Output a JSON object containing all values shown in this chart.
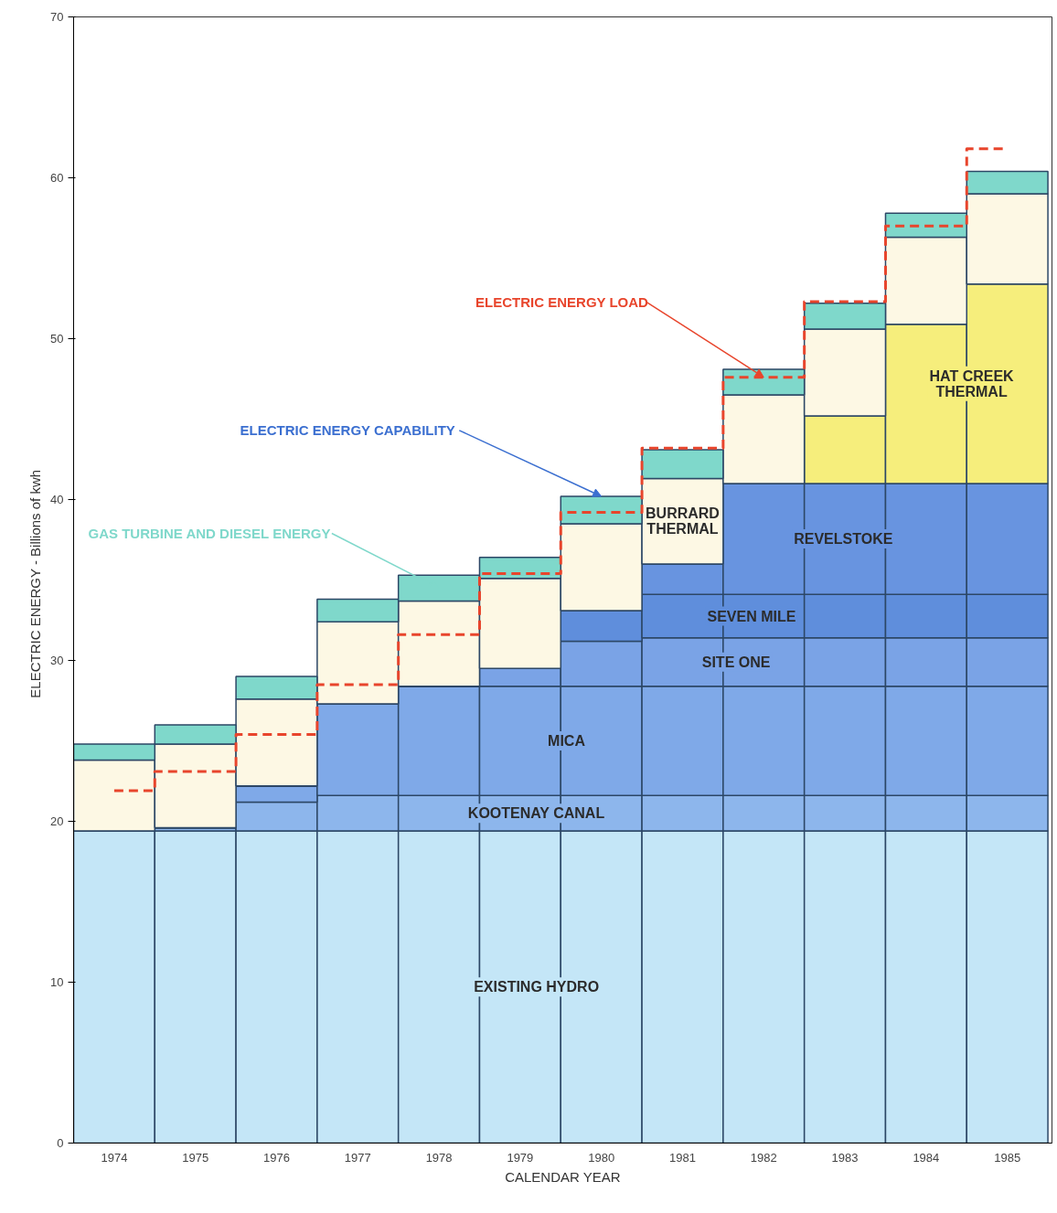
{
  "chart_data": {
    "type": "bar",
    "stacked": true,
    "xlabel": "CALENDAR YEAR",
    "ylabel": "ELECTRIC ENERGY  -  Billions of kwh",
    "categories": [
      "1974",
      "1975",
      "1976",
      "1977",
      "1978",
      "1979",
      "1980",
      "1981",
      "1982",
      "1983",
      "1984",
      "1985"
    ],
    "ylim": [
      0,
      70
    ],
    "yticks": [
      0,
      10,
      20,
      30,
      40,
      50,
      60,
      70
    ],
    "series": [
      {
        "name": "EXISTING HYDRO",
        "color": "#c4e6f7",
        "values": [
          19.4,
          19.4,
          19.4,
          19.4,
          19.4,
          19.4,
          19.4,
          19.4,
          19.4,
          19.4,
          19.4,
          19.4
        ]
      },
      {
        "name": "KOOTENAY CANAL",
        "color": "#8db6ec",
        "values": [
          0,
          0.2,
          1.8,
          2.2,
          2.2,
          2.2,
          2.2,
          2.2,
          2.2,
          2.2,
          2.2,
          2.2
        ]
      },
      {
        "name": "MICA",
        "color": "#7fa9e8",
        "values": [
          0,
          0,
          1.0,
          5.7,
          6.8,
          6.8,
          6.8,
          6.8,
          6.8,
          6.8,
          6.8,
          6.8
        ]
      },
      {
        "name": "SITE ONE",
        "color": "#7aa3e6",
        "values": [
          0,
          0,
          0,
          0,
          0,
          1.1,
          2.8,
          3.0,
          3.0,
          3.0,
          3.0,
          3.0
        ]
      },
      {
        "name": "SEVEN MILE",
        "color": "#5f8edc",
        "values": [
          0,
          0,
          0,
          0,
          0,
          0,
          1.9,
          2.7,
          2.7,
          2.7,
          2.7,
          2.7
        ]
      },
      {
        "name": "REVELSTOKE",
        "color": "#6894e0",
        "values": [
          0,
          0,
          0,
          0,
          0,
          0,
          0,
          1.9,
          6.9,
          6.9,
          6.9,
          6.9
        ]
      },
      {
        "name": "HAT CREEK\nTHERMAL",
        "color": "#f6ee7c",
        "values": [
          0,
          0,
          0,
          0,
          0,
          0,
          0,
          0,
          0,
          4.2,
          9.9,
          12.4
        ]
      },
      {
        "name": "BURRARD\nTHERMAL",
        "color": "#fdf8e4",
        "values": [
          4.4,
          5.2,
          5.4,
          5.1,
          5.3,
          5.6,
          5.4,
          5.3,
          5.5,
          5.4,
          5.4,
          5.6
        ]
      },
      {
        "name": "GAS TURBINE AND DIESEL ENERGY",
        "color": "#7fd8cb",
        "values": [
          1.0,
          1.2,
          1.4,
          1.4,
          1.6,
          1.3,
          1.7,
          1.8,
          1.6,
          1.6,
          1.5,
          1.4
        ]
      },
      {
        "type": "step",
        "name": "ELECTRIC ENERGY LOAD",
        "color": "#e8452c",
        "line_style": "dashed",
        "values": [
          21.9,
          23.1,
          25.4,
          28.5,
          31.6,
          35.4,
          39.2,
          43.2,
          47.6,
          52.3,
          57.0,
          61.8
        ]
      }
    ],
    "annotations": [
      {
        "text": "ELECTRIC ENERGY CAPABILITY",
        "x": "1980",
        "y": 40.2
      }
    ]
  }
}
